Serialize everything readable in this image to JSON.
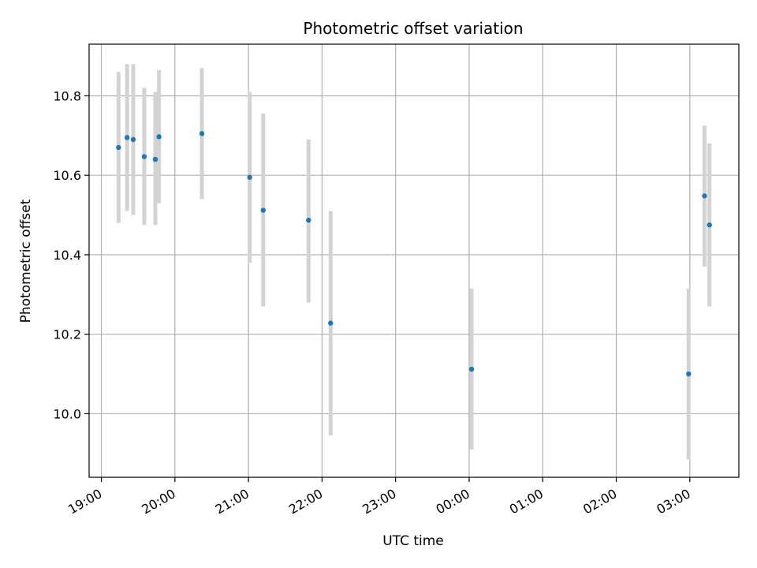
{
  "chart_data": {
    "type": "scatter",
    "title": "Photometric offset variation",
    "xlabel": "UTC time",
    "ylabel": "Photometric offset",
    "x_axis_type": "time",
    "xlim": [
      "18:50",
      "27:40"
    ],
    "ylim": [
      9.84,
      10.93
    ],
    "grid": true,
    "x_ticks": [
      "19:00",
      "20:00",
      "21:00",
      "22:00",
      "23:00",
      "00:00",
      "01:00",
      "02:00",
      "03:00"
    ],
    "y_ticks": [
      "10.0",
      "10.2",
      "10.4",
      "10.6",
      "10.8"
    ],
    "marker_color": "#1f77b4",
    "errorbar_color": "#d3d3d3",
    "points": [
      {
        "time": "19:14",
        "y": 10.67,
        "ylow": 10.48,
        "yhigh": 10.86
      },
      {
        "time": "19:21",
        "y": 10.695,
        "ylow": 10.51,
        "yhigh": 10.88
      },
      {
        "time": "19:26",
        "y": 10.69,
        "ylow": 10.5,
        "yhigh": 10.88
      },
      {
        "time": "19:35",
        "y": 10.647,
        "ylow": 10.475,
        "yhigh": 10.82
      },
      {
        "time": "19:44",
        "y": 10.64,
        "ylow": 10.475,
        "yhigh": 10.81
      },
      {
        "time": "19:47",
        "y": 10.697,
        "ylow": 10.53,
        "yhigh": 10.865
      },
      {
        "time": "20:22",
        "y": 10.705,
        "ylow": 10.54,
        "yhigh": 10.87
      },
      {
        "time": "21:01",
        "y": 10.595,
        "ylow": 10.38,
        "yhigh": 10.81
      },
      {
        "time": "21:12",
        "y": 10.512,
        "ylow": 10.27,
        "yhigh": 10.755
      },
      {
        "time": "21:49",
        "y": 10.487,
        "ylow": 10.28,
        "yhigh": 10.69
      },
      {
        "time": "22:07",
        "y": 10.228,
        "ylow": 9.945,
        "yhigh": 10.51
      },
      {
        "time": "24:02",
        "y": 10.112,
        "ylow": 9.91,
        "yhigh": 10.315
      },
      {
        "time": "26:59",
        "y": 10.1,
        "ylow": 9.885,
        "yhigh": 10.315
      },
      {
        "time": "27:12",
        "y": 10.548,
        "ylow": 10.37,
        "yhigh": 10.725
      },
      {
        "time": "27:16",
        "y": 10.475,
        "ylow": 10.27,
        "yhigh": 10.68
      }
    ]
  }
}
